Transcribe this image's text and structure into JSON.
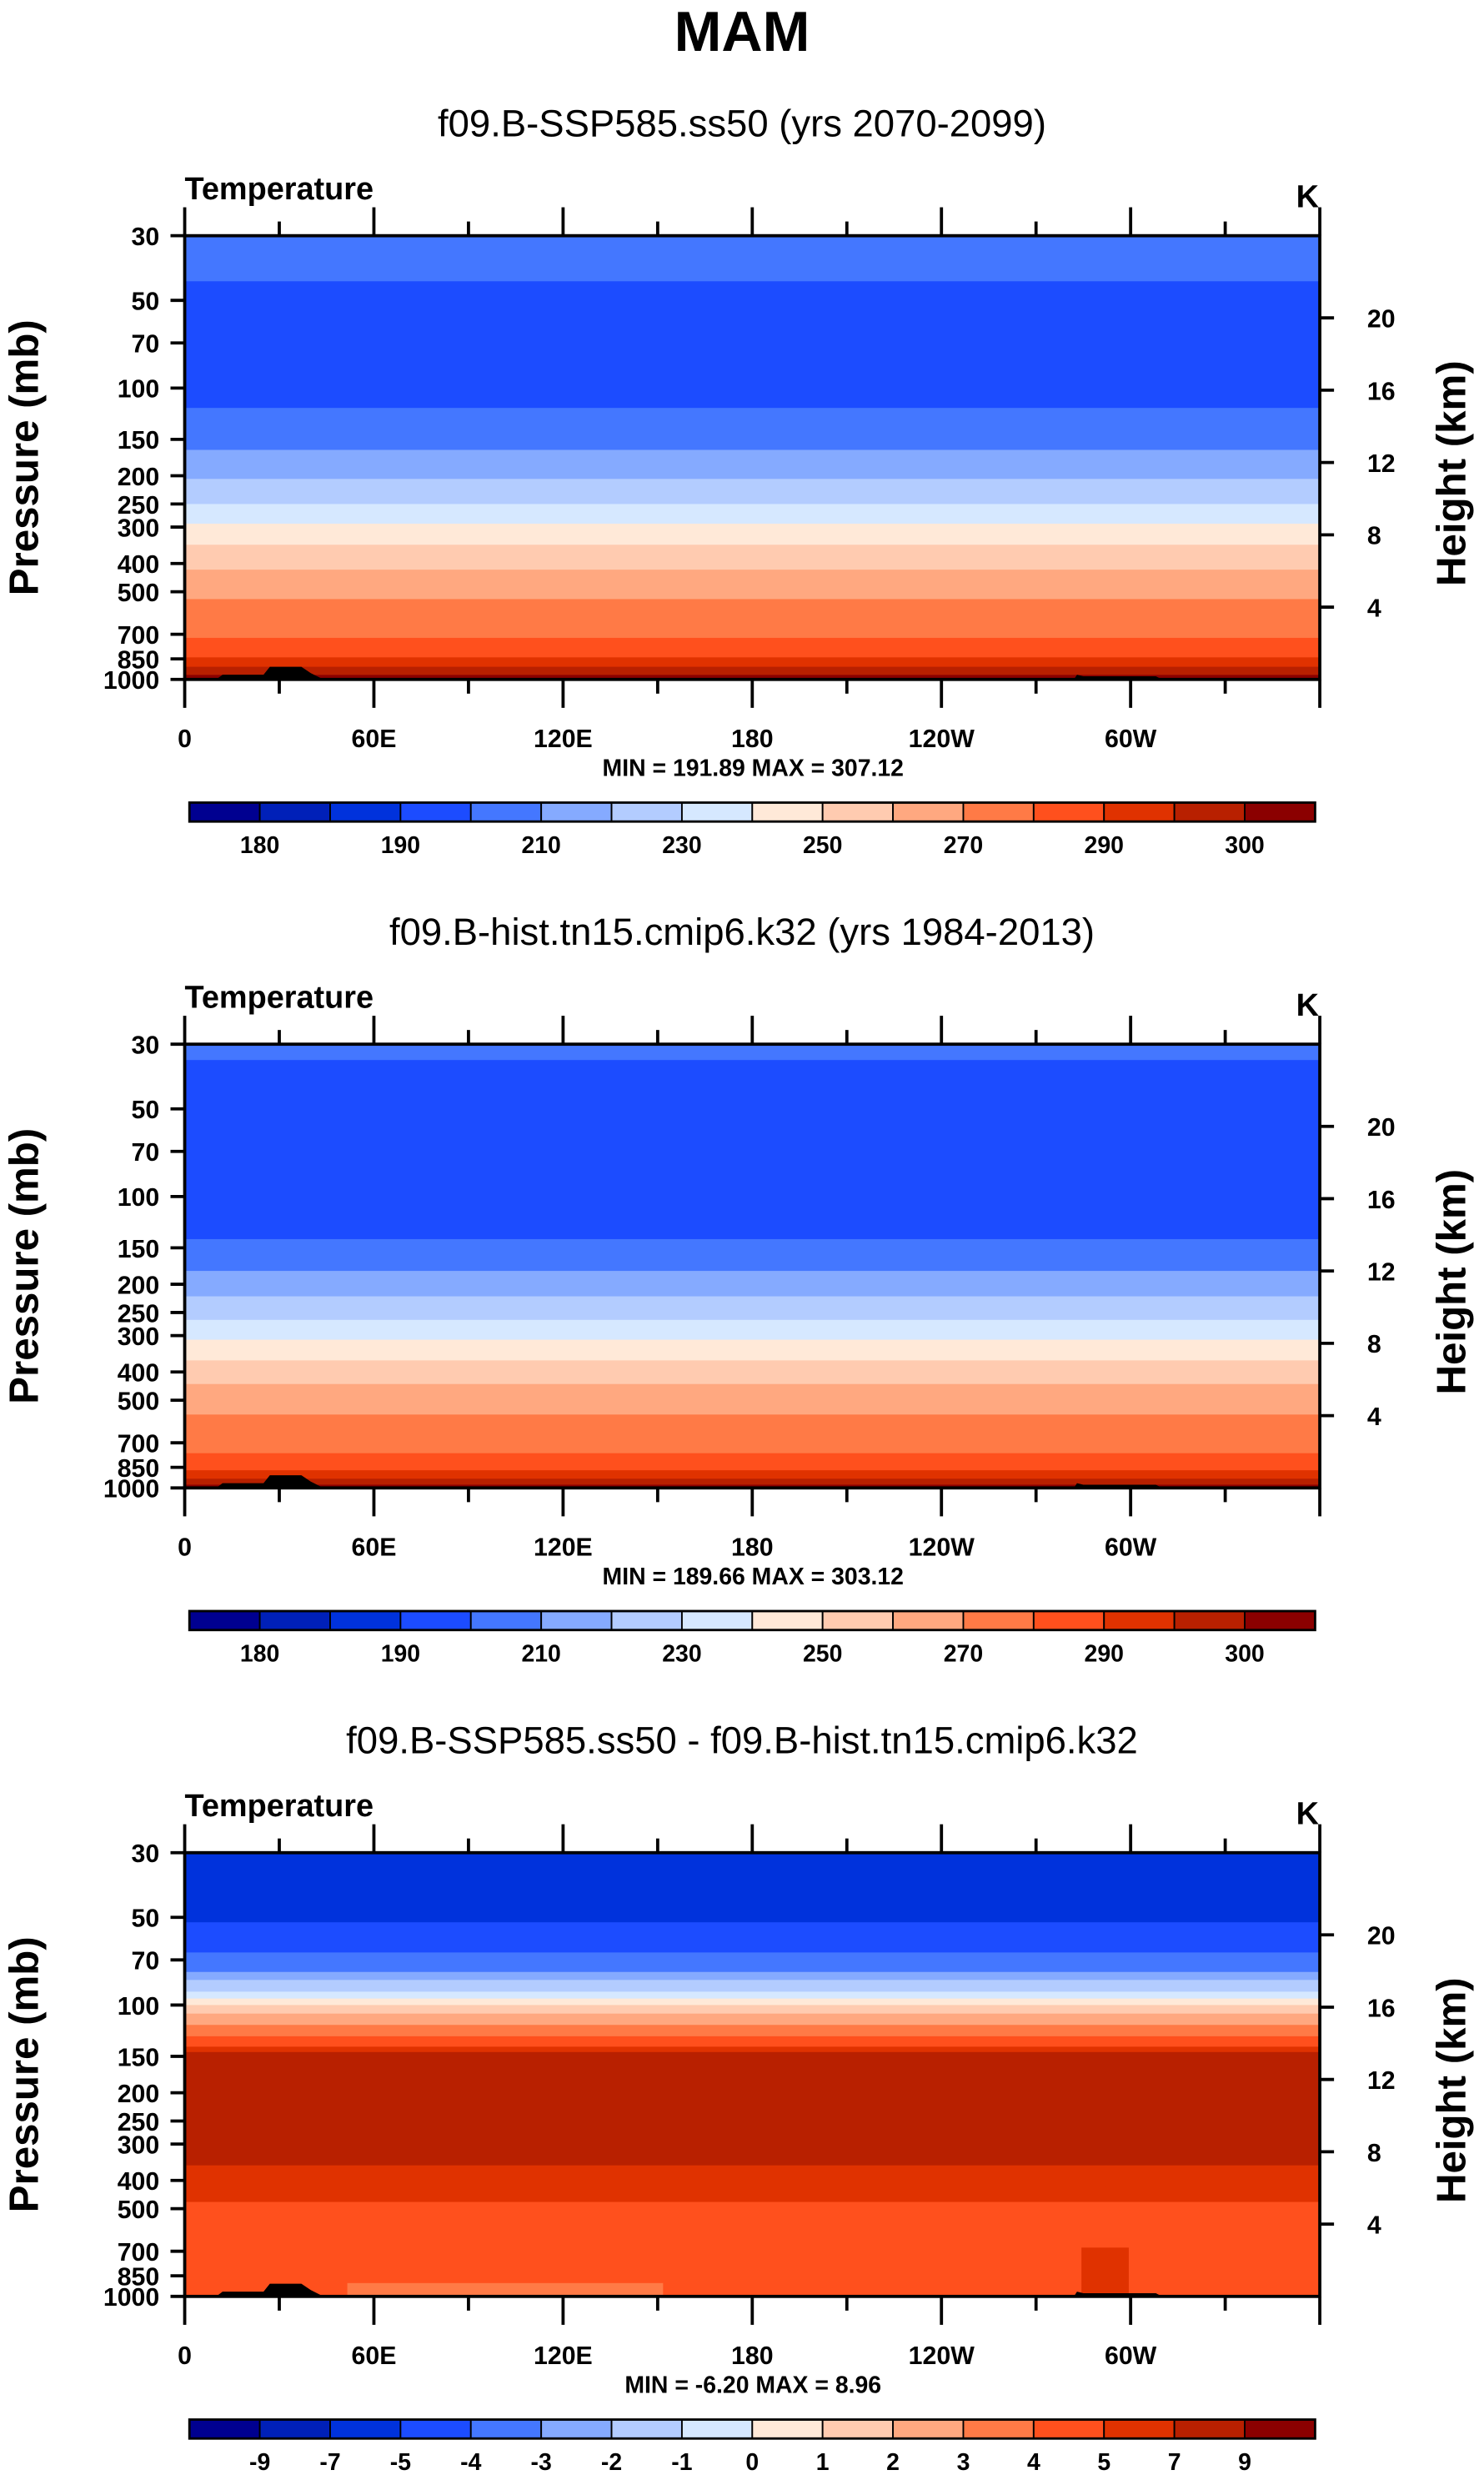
{
  "title": "MAM",
  "colormap": [
    "#000090",
    "#0020b8",
    "#0032dc",
    "#1c4cff",
    "#4477ff",
    "#85aaff",
    "#b3ccff",
    "#d6e8ff",
    "#ffe9d8",
    "#ffcbb0",
    "#ffa880",
    "#ff7a46",
    "#ff501d",
    "#e03200",
    "#b82000",
    "#8b0000"
  ],
  "chart_data": [
    {
      "type": "heatmap",
      "subtitle": "f09.B-SSP585.ss50 (yrs 2070-2099)",
      "left_label": "Temperature",
      "right_label": "K",
      "ylabel": "Pressure (mb)",
      "y2label": "Height (km)",
      "yticks": [
        "30",
        "50",
        "70",
        "100",
        "150",
        "200",
        "250",
        "300",
        "400",
        "500",
        "700",
        "850",
        "1000"
      ],
      "y2ticks": [
        "20",
        "16",
        "12",
        "8",
        "4"
      ],
      "xticks": [
        "0",
        "60E",
        "120E",
        "180",
        "120W",
        "60W"
      ],
      "ylim": [
        1000,
        30
      ],
      "xlim": [
        0,
        360
      ],
      "stats": "MIN = 191.89  MAX = 307.12",
      "colorbar_labels": [
        "180",
        "190",
        "210",
        "230",
        "250",
        "270",
        "290",
        "300"
      ],
      "colorbar_label_step": 2,
      "bands": [
        {
          "from": 30,
          "to": 43,
          "level": 4
        },
        {
          "from": 43,
          "to": 117,
          "level": 3
        },
        {
          "from": 117,
          "to": 163,
          "level": 4
        },
        {
          "from": 163,
          "to": 205,
          "level": 5
        },
        {
          "from": 205,
          "to": 250,
          "level": 6
        },
        {
          "from": 250,
          "to": 292,
          "level": 7
        },
        {
          "from": 292,
          "to": 345,
          "level": 8
        },
        {
          "from": 345,
          "to": 420,
          "level": 9
        },
        {
          "from": 420,
          "to": 530,
          "level": 10
        },
        {
          "from": 530,
          "to": 720,
          "level": 11
        },
        {
          "from": 720,
          "to": 840,
          "level": 12
        },
        {
          "from": 840,
          "to": 905,
          "level": 13
        },
        {
          "from": 905,
          "to": 965,
          "level": 14
        },
        {
          "from": 965,
          "to": 1000,
          "level": 15
        }
      ]
    },
    {
      "type": "heatmap",
      "subtitle": "f09.B-hist.tn15.cmip6.k32 (yrs 1984-2013)",
      "left_label": "Temperature",
      "right_label": "K",
      "ylabel": "Pressure (mb)",
      "y2label": "Height (km)",
      "yticks": [
        "30",
        "50",
        "70",
        "100",
        "150",
        "200",
        "250",
        "300",
        "400",
        "500",
        "700",
        "850",
        "1000"
      ],
      "y2ticks": [
        "20",
        "16",
        "12",
        "8",
        "4"
      ],
      "xticks": [
        "0",
        "60E",
        "120E",
        "180",
        "120W",
        "60W"
      ],
      "ylim": [
        1000,
        30
      ],
      "xlim": [
        0,
        360
      ],
      "stats": "MIN = 189.66  MAX = 303.12",
      "colorbar_labels": [
        "180",
        "190",
        "210",
        "230",
        "250",
        "270",
        "290",
        "300"
      ],
      "colorbar_label_step": 2,
      "bands": [
        {
          "from": 30,
          "to": 34,
          "level": 4
        },
        {
          "from": 34,
          "to": 58,
          "level": 3
        },
        {
          "from": 58,
          "to": 140,
          "level": 3
        },
        {
          "from": 140,
          "to": 180,
          "level": 4
        },
        {
          "from": 180,
          "to": 220,
          "level": 5
        },
        {
          "from": 220,
          "to": 265,
          "level": 6
        },
        {
          "from": 265,
          "to": 310,
          "level": 7
        },
        {
          "from": 310,
          "to": 365,
          "level": 8
        },
        {
          "from": 365,
          "to": 440,
          "level": 9
        },
        {
          "from": 440,
          "to": 560,
          "level": 10
        },
        {
          "from": 560,
          "to": 760,
          "level": 11
        },
        {
          "from": 760,
          "to": 870,
          "level": 12
        },
        {
          "from": 870,
          "to": 930,
          "level": 13
        },
        {
          "from": 930,
          "to": 975,
          "level": 14
        },
        {
          "from": 975,
          "to": 1000,
          "level": 15
        }
      ]
    },
    {
      "type": "heatmap",
      "subtitle": "f09.B-SSP585.ss50 - f09.B-hist.tn15.cmip6.k32",
      "left_label": "Temperature",
      "right_label": "K",
      "ylabel": "Pressure (mb)",
      "y2label": "Height (km)",
      "yticks": [
        "30",
        "50",
        "70",
        "100",
        "150",
        "200",
        "250",
        "300",
        "400",
        "500",
        "700",
        "850",
        "1000"
      ],
      "y2ticks": [
        "20",
        "16",
        "12",
        "8",
        "4"
      ],
      "xticks": [
        "0",
        "60E",
        "120E",
        "180",
        "120W",
        "60W"
      ],
      "ylim": [
        1000,
        30
      ],
      "xlim": [
        0,
        360
      ],
      "stats": "MIN = -6.20  MAX =  8.96",
      "colorbar_labels": [
        "-9",
        "-7",
        "-5",
        "-4",
        "-3",
        "-2",
        "-1",
        "0",
        "1",
        "2",
        "3",
        "4",
        "5",
        "7",
        "9"
      ],
      "colorbar_label_step": 1,
      "bands": [
        {
          "from": 30,
          "to": 52,
          "level": 2
        },
        {
          "from": 52,
          "to": 66,
          "level": 3
        },
        {
          "from": 66,
          "to": 77,
          "level": 4
        },
        {
          "from": 77,
          "to": 82,
          "level": 5
        },
        {
          "from": 82,
          "to": 90,
          "level": 6
        },
        {
          "from": 90,
          "to": 95,
          "level": 7
        },
        {
          "from": 95,
          "to": 100,
          "level": 8
        },
        {
          "from": 100,
          "to": 107,
          "level": 9
        },
        {
          "from": 107,
          "to": 117,
          "level": 10
        },
        {
          "from": 117,
          "to": 128,
          "level": 11
        },
        {
          "from": 128,
          "to": 139,
          "level": 12
        },
        {
          "from": 139,
          "to": 145,
          "level": 13
        },
        {
          "from": 145,
          "to": 355,
          "level": 14
        },
        {
          "from": 355,
          "to": 474,
          "level": 13
        },
        {
          "from": 474,
          "to": 1000,
          "level": 12
        }
      ]
    }
  ]
}
